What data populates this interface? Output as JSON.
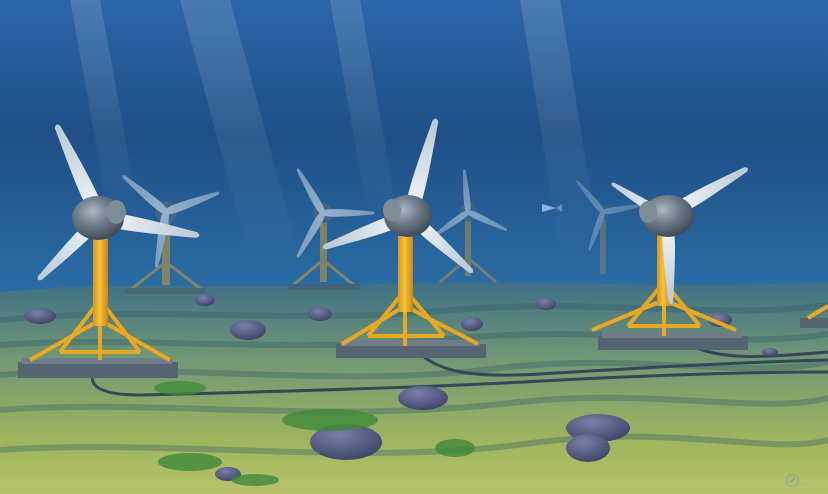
{
  "image": {
    "kind": "underwater-rendering",
    "colors": {
      "water_top": "#2a5e9c",
      "water_mid": "#1f4f86",
      "water_deep": "#2c69a0",
      "seabed_far": "#4f7f8a",
      "seabed_near": "#a8b860",
      "tower": "#f1b72a",
      "nacelle": "#5f6f7e",
      "blade": "#dfe8ef",
      "base": "#55646f",
      "rock": "#4a4f78",
      "cable": "#3a4a5c",
      "seaweed": "#3f8a3a"
    },
    "turbines_foreground": 3,
    "turbines_background": 4,
    "fish": 1
  },
  "watermark": {
    "text": "...",
    "logo": "circle-logo-icon"
  }
}
